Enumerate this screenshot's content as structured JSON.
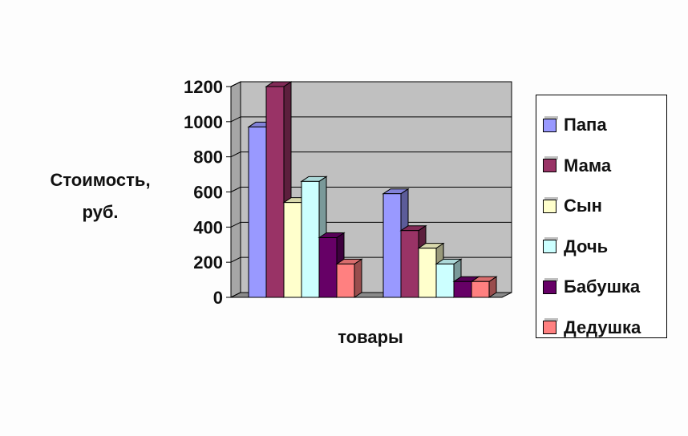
{
  "chart_data": {
    "type": "bar",
    "categories": [
      "",
      ""
    ],
    "series": [
      {
        "name": "Папа",
        "values": [
          970,
          590
        ],
        "color": "#9999ff"
      },
      {
        "name": "Мама",
        "values": [
          1200,
          380
        ],
        "color": "#993366"
      },
      {
        "name": "Сын",
        "values": [
          540,
          280
        ],
        "color": "#ffffcc"
      },
      {
        "name": "Дочь",
        "values": [
          660,
          190
        ],
        "color": "#ccffff"
      },
      {
        "name": "Бабушка",
        "values": [
          340,
          90
        ],
        "color": "#660066"
      },
      {
        "name": "Дедушка",
        "values": [
          190,
          90
        ],
        "color": "#ff8080"
      }
    ],
    "title": "",
    "xlabel": "товары",
    "ylabel": "Стоимость, руб.",
    "ylabel_lines": [
      "Стоимость,",
      "руб."
    ],
    "ylim": [
      0,
      1200
    ],
    "yticks": [
      0,
      200,
      400,
      600,
      800,
      1000,
      1200
    ],
    "grid": true,
    "plot_background": "#c0c0c0",
    "legend_position": "right"
  }
}
